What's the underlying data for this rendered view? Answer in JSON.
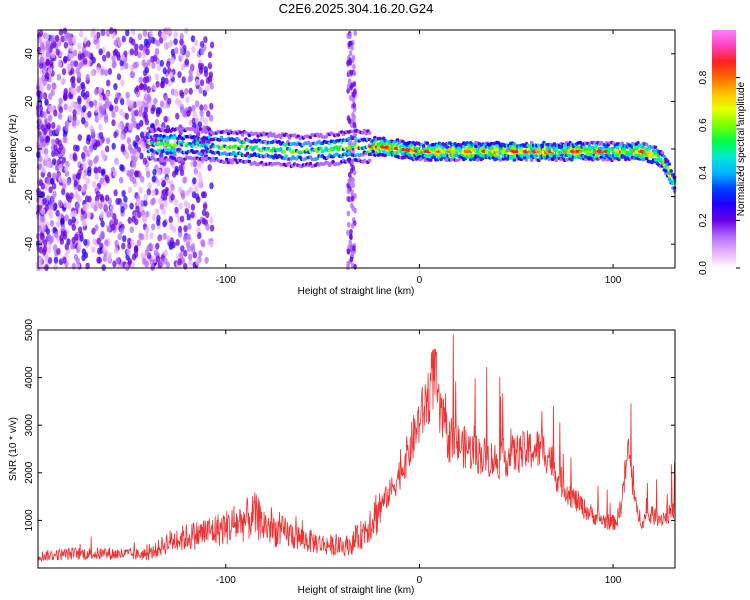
{
  "title": "C2E6.2025.304.16.20.G24",
  "chart_data": [
    {
      "type": "heatmap",
      "name": "spectrogram",
      "xlabel": "Height of straight line (km)",
      "ylabel": "Frequency (Hz)",
      "xlim": [
        -197,
        132
      ],
      "ylim": [
        -50,
        50
      ],
      "xticks": [
        -100,
        0,
        100
      ],
      "yticks": [
        -40,
        -20,
        0,
        20,
        40
      ],
      "colorbar": {
        "label": "Normalized spectral amplitude",
        "range": [
          0,
          1
        ],
        "ticks": [
          0.0,
          0.2,
          0.4,
          0.6,
          0.8
        ],
        "tick_labels": [
          "0.0",
          "0.2",
          "0.4",
          "0.6",
          "0.8"
        ],
        "colormap": [
          "#ffffff",
          "#e8b0ff",
          "#b36bff",
          "#6a00e8",
          "#2200ff",
          "#0040ff",
          "#00b7ff",
          "#00e8d0",
          "#00ff40",
          "#7aff00",
          "#e8ff00",
          "#ffc000",
          "#ff6a00",
          "#ff2020",
          "#ff40c0",
          "#ff80ff"
        ]
      },
      "ridge": {
        "height_km": [
          -135,
          -120,
          -100,
          -80,
          -60,
          -45,
          -35,
          -20,
          -10,
          0,
          20,
          40,
          60,
          70,
          80,
          90,
          100,
          110,
          115,
          120,
          125,
          128,
          132
        ],
        "frequency_hz": [
          2,
          2,
          1,
          0,
          -1,
          0,
          1,
          1,
          0,
          -1,
          -1,
          -1,
          -1,
          -1,
          -1,
          -1,
          -1,
          -1,
          -1,
          -2,
          -4,
          -8,
          -15
        ]
      }
    },
    {
      "type": "line",
      "name": "snr",
      "xlabel": "Height of straight line (km)",
      "ylabel": "SNR (10 * v/v)",
      "xlim": [
        -197,
        132
      ],
      "ylim": [
        0,
        5000
      ],
      "xticks": [
        -100,
        0,
        100
      ],
      "yticks": [
        1000,
        2000,
        3000,
        4000,
        5000
      ],
      "color": "#ee3333",
      "series": [
        {
          "name": "SNR",
          "x": [
            -197,
            -180,
            -160,
            -140,
            -135,
            -130,
            -120,
            -110,
            -100,
            -90,
            -85,
            -80,
            -75,
            -70,
            -60,
            -50,
            -40,
            -35,
            -30,
            -25,
            -20,
            -15,
            -10,
            -5,
            0,
            3,
            6,
            8,
            10,
            15,
            20,
            30,
            40,
            50,
            55,
            60,
            65,
            68,
            70,
            75,
            80,
            85,
            90,
            95,
            100,
            102,
            104,
            106,
            108,
            110,
            112,
            115,
            120,
            125,
            130,
            132
          ],
          "y": [
            250,
            300,
            300,
            280,
            400,
            550,
            650,
            750,
            850,
            1000,
            1100,
            900,
            800,
            750,
            600,
            500,
            450,
            500,
            700,
            1000,
            1300,
            1600,
            2000,
            2500,
            3100,
            3400,
            3800,
            4200,
            3300,
            2700,
            2600,
            2400,
            2250,
            2400,
            2450,
            2500,
            2450,
            2300,
            2000,
            1700,
            1450,
            1250,
            1100,
            1000,
            950,
            1000,
            1300,
            1900,
            2500,
            1800,
            1200,
            1000,
            1100,
            1050,
            1150,
            1300
          ]
        }
      ]
    }
  ]
}
